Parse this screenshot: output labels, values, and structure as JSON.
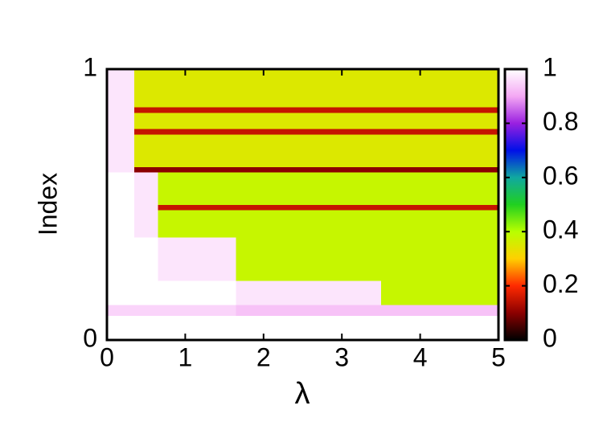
{
  "chart_data": {
    "type": "heatmap",
    "xlabel": "λ",
    "ylabel": "Index",
    "x_edges": [
      0,
      0.35,
      0.65,
      1.65,
      3.5,
      5
    ],
    "y_edges": [
      0,
      0.09,
      0.13,
      0.22,
      0.38,
      0.48,
      0.5,
      0.62,
      0.64,
      0.76,
      0.78,
      0.84,
      0.86,
      1
    ],
    "z": [
      [
        1,
        1,
        1,
        1,
        1
      ],
      [
        0.95,
        0.95,
        0.95,
        0.93,
        0.93
      ],
      [
        1,
        1,
        1,
        0.97,
        0.38
      ],
      [
        1,
        1,
        0.97,
        0.38,
        0.38
      ],
      [
        1,
        0.97,
        0.38,
        0.38,
        0.38
      ],
      [
        1,
        0.97,
        0.15,
        0.15,
        0.15
      ],
      [
        1,
        0.97,
        0.38,
        0.38,
        0.38
      ],
      [
        0.97,
        0.1,
        0.1,
        0.1,
        0.1
      ],
      [
        0.97,
        0.35,
        0.35,
        0.35,
        0.35
      ],
      [
        0.97,
        0.15,
        0.15,
        0.15,
        0.15
      ],
      [
        0.97,
        0.35,
        0.35,
        0.35,
        0.35
      ],
      [
        0.97,
        0.15,
        0.15,
        0.15,
        0.15
      ],
      [
        0.97,
        0.35,
        0.35,
        0.35,
        0.35
      ]
    ],
    "xlim": [
      0,
      5
    ],
    "xticks": [
      0,
      1,
      2,
      3,
      4,
      5
    ],
    "ylim": [
      0,
      1
    ],
    "yticks": [
      0,
      1
    ],
    "clim": [
      0,
      1
    ],
    "cticks": [
      0,
      0.2,
      0.4,
      0.6,
      0.8,
      1
    ],
    "colormap": [
      "#000000",
      "#8b0000",
      "#ff2a00",
      "#ffd000",
      "#b8ff00",
      "#20d020",
      "#10a8a0",
      "#0010e8",
      "#9a20e0",
      "#f4a8f4",
      "#ffffff"
    ]
  }
}
